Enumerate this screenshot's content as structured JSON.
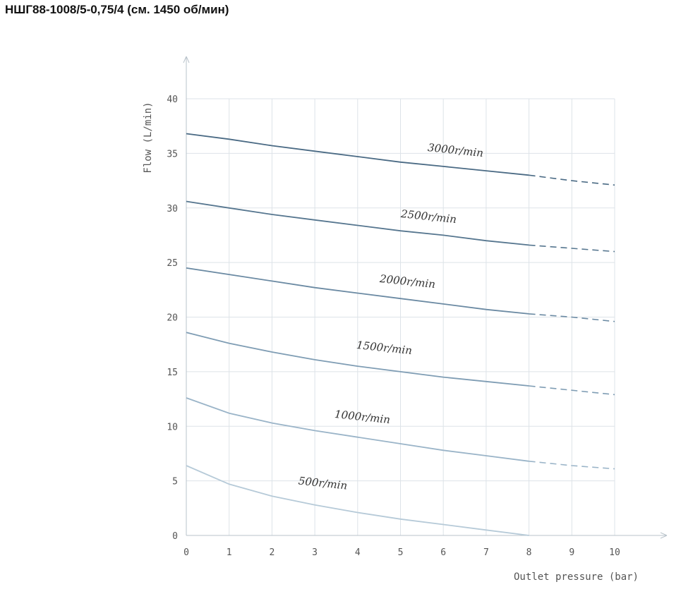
{
  "page": {
    "title": "НШГ88-1008/5-0,75/4 (см. 1450 об/мин)"
  },
  "chart_data": {
    "type": "line",
    "title": "НШГ88-1008/5-0,75/4 (см. 1450 об/мин)",
    "xlabel": "Outlet pressure (bar)",
    "ylabel": "Flow (L/min)",
    "xlim": [
      0,
      10
    ],
    "ylim": [
      0,
      40
    ],
    "x_ticks": [
      "0",
      "1",
      "2",
      "3",
      "4",
      "5",
      "6",
      "7",
      "8",
      "9",
      "10"
    ],
    "y_ticks": [
      "0",
      "5",
      "10",
      "15",
      "20",
      "25",
      "30",
      "35",
      "40"
    ],
    "grid": true,
    "solid_until_x": 8,
    "series": [
      {
        "name": "3000r/min",
        "color": "#4a6a84",
        "x": [
          0,
          1,
          2,
          3,
          4,
          5,
          6,
          7,
          8,
          9,
          10
        ],
        "y": [
          36.8,
          36.3,
          35.7,
          35.2,
          34.7,
          34.2,
          33.8,
          33.4,
          33.0,
          32.5,
          32.1
        ]
      },
      {
        "name": "2500r/min",
        "color": "#56768f",
        "x": [
          0,
          1,
          2,
          3,
          4,
          5,
          6,
          7,
          8,
          9,
          10
        ],
        "y": [
          30.6,
          30.0,
          29.4,
          28.9,
          28.4,
          27.9,
          27.5,
          27.0,
          26.6,
          26.3,
          26.0
        ]
      },
      {
        "name": "2000r/min",
        "color": "#6b8aa3",
        "x": [
          0,
          1,
          2,
          3,
          4,
          5,
          6,
          7,
          8,
          9,
          10
        ],
        "y": [
          24.5,
          23.9,
          23.3,
          22.7,
          22.2,
          21.7,
          21.2,
          20.7,
          20.3,
          20.0,
          19.6
        ]
      },
      {
        "name": "1500r/min",
        "color": "#7f9db4",
        "x": [
          0,
          1,
          2,
          3,
          4,
          5,
          6,
          7,
          8,
          9,
          10
        ],
        "y": [
          18.6,
          17.6,
          16.8,
          16.1,
          15.5,
          15.0,
          14.5,
          14.1,
          13.7,
          13.3,
          12.9
        ]
      },
      {
        "name": "1000r/min",
        "color": "#9ab4c8",
        "x": [
          0,
          1,
          2,
          3,
          4,
          5,
          6,
          7,
          8,
          9,
          10
        ],
        "y": [
          12.6,
          11.2,
          10.3,
          9.6,
          9.0,
          8.4,
          7.8,
          7.3,
          6.8,
          6.4,
          6.1
        ]
      },
      {
        "name": "500r/min",
        "color": "#b6cad8",
        "x": [
          0,
          1,
          2,
          3,
          4,
          5,
          6,
          7,
          8
        ],
        "y": [
          6.4,
          4.7,
          3.6,
          2.8,
          2.1,
          1.5,
          1.0,
          0.5,
          0.0
        ]
      }
    ]
  }
}
